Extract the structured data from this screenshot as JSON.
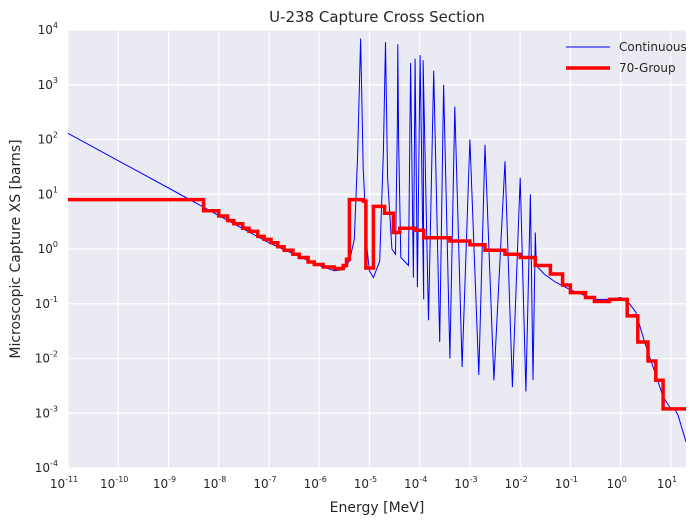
{
  "chart_data": {
    "type": "line",
    "title": "U-238 Capture Cross Section",
    "xlabel": "Energy [MeV]",
    "ylabel": "Microscopic Capture XS [barns]",
    "xscale": "log",
    "yscale": "log",
    "xlim": [
      1e-11,
      20
    ],
    "ylim": [
      0.0001,
      10000.0
    ],
    "grid": true,
    "legend_position": "top-right",
    "x_ticks": [
      {
        "base": "10",
        "exp": "-11"
      },
      {
        "base": "10",
        "exp": "-10"
      },
      {
        "base": "10",
        "exp": "-9"
      },
      {
        "base": "10",
        "exp": "-8"
      },
      {
        "base": "10",
        "exp": "-7"
      },
      {
        "base": "10",
        "exp": "-6"
      },
      {
        "base": "10",
        "exp": "-5"
      },
      {
        "base": "10",
        "exp": "-4"
      },
      {
        "base": "10",
        "exp": "-3"
      },
      {
        "base": "10",
        "exp": "-2"
      },
      {
        "base": "10",
        "exp": "-1"
      },
      {
        "base": "10",
        "exp": "0"
      },
      {
        "base": "10",
        "exp": "1"
      }
    ],
    "y_ticks": [
      {
        "base": "10",
        "exp": "-4"
      },
      {
        "base": "10",
        "exp": "-3"
      },
      {
        "base": "10",
        "exp": "-2"
      },
      {
        "base": "10",
        "exp": "-1"
      },
      {
        "base": "10",
        "exp": "0"
      },
      {
        "base": "10",
        "exp": "1"
      },
      {
        "base": "10",
        "exp": "2"
      },
      {
        "base": "10",
        "exp": "3"
      },
      {
        "base": "10",
        "exp": "4"
      }
    ],
    "series": [
      {
        "name": "Continuous",
        "color": "#0000ff",
        "style": "thin-line",
        "points": [
          [
            1e-11,
            130
          ],
          [
            1e-10,
            41
          ],
          [
            1e-09,
            13
          ],
          [
            5e-09,
            5.8
          ],
          [
            1e-08,
            4.1
          ],
          [
            1e-07,
            1.3
          ],
          [
            1e-06,
            0.5
          ],
          [
            2e-06,
            0.4
          ],
          [
            3e-06,
            0.42
          ],
          [
            4e-06,
            0.6
          ],
          [
            5e-06,
            1.5
          ],
          [
            5.8e-06,
            50
          ],
          [
            6.67e-06,
            7000
          ],
          [
            7.5e-06,
            30
          ],
          [
            9e-06,
            1.0
          ],
          [
            1e-05,
            0.4
          ],
          [
            1.2e-05,
            0.3
          ],
          [
            1.6e-05,
            0.6
          ],
          [
            1.9e-05,
            60
          ],
          [
            2.09e-05,
            6000
          ],
          [
            2.3e-05,
            20
          ],
          [
            2.8e-05,
            1.0
          ],
          [
            3.3e-05,
            0.8
          ],
          [
            3.6e-05,
            200
          ],
          [
            3.67e-05,
            5500
          ],
          [
            3.8e-05,
            100
          ],
          [
            4.2e-05,
            0.7
          ],
          [
            6e-05,
            0.5
          ],
          [
            6.6e-05,
            2500
          ],
          [
            7.5e-05,
            0.3
          ],
          [
            8.1e-05,
            3000
          ],
          [
            9e-05,
            0.2
          ],
          [
            0.000102,
            3500
          ],
          [
            0.00012,
            0.12
          ],
          [
            0.000117,
            2800
          ],
          [
            0.00015,
            0.05
          ],
          [
            0.00019,
            1800
          ],
          [
            0.00025,
            0.02
          ],
          [
            0.0003,
            1000
          ],
          [
            0.0004,
            0.01
          ],
          [
            0.0005,
            400
          ],
          [
            0.0007,
            0.007
          ],
          [
            0.001,
            100
          ],
          [
            0.0015,
            0.005
          ],
          [
            0.002,
            80
          ],
          [
            0.003,
            0.004
          ],
          [
            0.005,
            40
          ],
          [
            0.007,
            0.003
          ],
          [
            0.01,
            20
          ],
          [
            0.013,
            0.0025
          ],
          [
            0.016,
            10
          ],
          [
            0.018,
            0.004
          ],
          [
            0.02,
            2.0
          ],
          [
            0.021,
            0.5
          ],
          [
            0.03,
            0.35
          ],
          [
            0.05,
            0.25
          ],
          [
            0.1,
            0.18
          ],
          [
            0.3,
            0.12
          ],
          [
            0.6,
            0.12
          ],
          [
            1,
            0.13
          ],
          [
            1.5,
            0.1
          ],
          [
            2,
            0.07
          ],
          [
            3,
            0.02
          ],
          [
            5,
            0.005
          ],
          [
            7,
            0.002
          ],
          [
            10,
            0.0012
          ],
          [
            12,
            0.0012
          ],
          [
            14,
            0.0009
          ],
          [
            20,
            0.0003
          ]
        ]
      },
      {
        "name": "70-Group",
        "color": "#ff0000",
        "style": "step",
        "steps": [
          [
            1e-11,
            8
          ],
          [
            5e-09,
            5
          ],
          [
            1e-08,
            4.0
          ],
          [
            1.5e-08,
            3.3
          ],
          [
            2e-08,
            2.9
          ],
          [
            3e-08,
            2.4
          ],
          [
            4e-08,
            2.1
          ],
          [
            6e-08,
            1.7
          ],
          [
            8e-08,
            1.5
          ],
          [
            1.1e-07,
            1.3
          ],
          [
            1.5e-07,
            1.1
          ],
          [
            2e-07,
            0.95
          ],
          [
            3e-07,
            0.8
          ],
          [
            4e-07,
            0.7
          ],
          [
            6e-07,
            0.58
          ],
          [
            8e-07,
            0.52
          ],
          [
            1.2e-06,
            0.47
          ],
          [
            2e-06,
            0.44
          ],
          [
            3e-06,
            0.5
          ],
          [
            3.5e-06,
            0.65
          ],
          [
            4e-06,
            8
          ],
          [
            7.5e-06,
            7.5
          ],
          [
            8.5e-06,
            0.45
          ],
          [
            1.2e-05,
            6
          ],
          [
            2e-05,
            4.5
          ],
          [
            3e-05,
            2.0
          ],
          [
            4e-05,
            2.4
          ],
          [
            8e-05,
            2.2
          ],
          [
            0.00012,
            1.6
          ],
          [
            0.0004,
            1.4
          ],
          [
            0.001,
            1.2
          ],
          [
            0.002,
            0.95
          ],
          [
            0.005,
            0.8
          ],
          [
            0.01,
            0.7
          ],
          [
            0.02,
            0.5
          ],
          [
            0.04,
            0.35
          ],
          [
            0.07,
            0.22
          ],
          [
            0.1,
            0.16
          ],
          [
            0.2,
            0.13
          ],
          [
            0.3,
            0.11
          ],
          [
            0.6,
            0.12
          ],
          [
            1,
            0.12
          ],
          [
            1.35,
            0.06
          ],
          [
            2.2,
            0.02
          ],
          [
            3.5,
            0.009
          ],
          [
            5,
            0.004
          ],
          [
            7,
            0.0012
          ],
          [
            20,
            0.0012
          ]
        ]
      }
    ]
  }
}
